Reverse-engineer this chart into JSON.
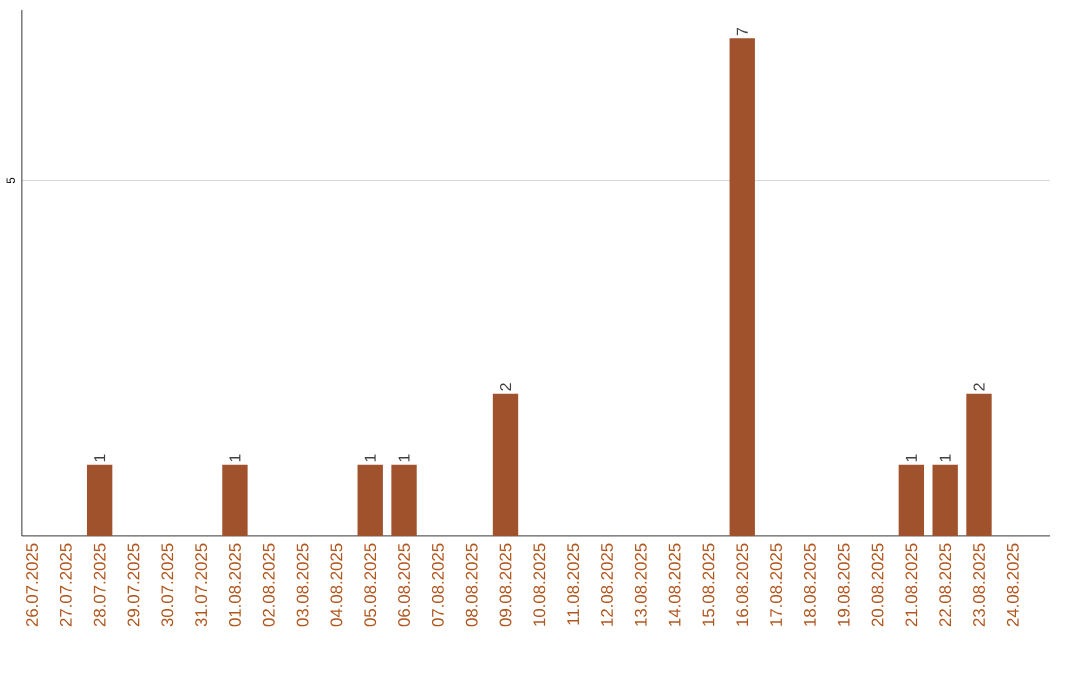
{
  "chart_data": {
    "type": "bar",
    "categories": [
      "26.07.2025",
      "27.07.2025",
      "28.07.2025",
      "29.07.2025",
      "30.07.2025",
      "31.07.2025",
      "01.08.2025",
      "02.08.2025",
      "03.08.2025",
      "04.08.2025",
      "05.08.2025",
      "06.08.2025",
      "07.08.2025",
      "08.08.2025",
      "09.08.2025",
      "10.08.2025",
      "11.08.2025",
      "12.08.2025",
      "13.08.2025",
      "14.08.2025",
      "15.08.2025",
      "16.08.2025",
      "17.08.2025",
      "18.08.2025",
      "19.08.2025",
      "20.08.2025",
      "21.08.2025",
      "22.08.2025",
      "23.08.2025",
      "24.08.2025"
    ],
    "values": [
      0,
      0,
      1,
      0,
      0,
      0,
      1,
      0,
      0,
      0,
      1,
      1,
      0,
      0,
      2,
      0,
      0,
      0,
      0,
      0,
      0,
      7,
      0,
      0,
      0,
      0,
      1,
      1,
      2,
      0
    ],
    "value_labels": [
      null,
      null,
      "1",
      null,
      null,
      null,
      "1",
      null,
      null,
      null,
      "1",
      "1",
      null,
      null,
      "2",
      null,
      null,
      null,
      null,
      null,
      null,
      "7",
      null,
      null,
      null,
      null,
      "1",
      "1",
      "2",
      null
    ],
    "color": "#a0522d",
    "ylim": [
      0,
      7.4
    ],
    "yticks": [
      5
    ],
    "grid": "y"
  }
}
